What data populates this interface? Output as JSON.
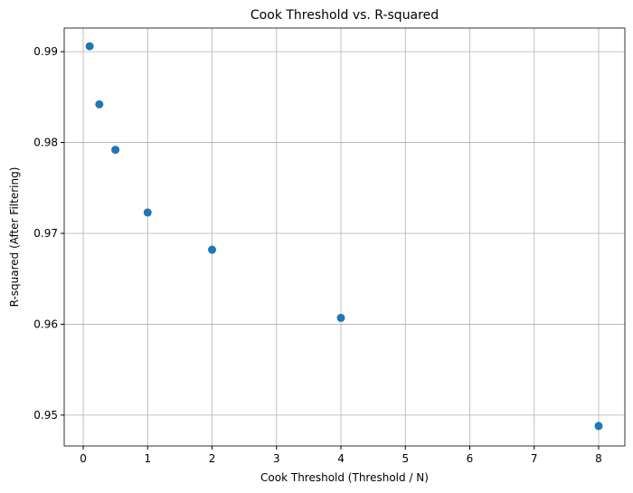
{
  "chart_data": {
    "type": "scatter",
    "title": "Cook Threshold vs. R-squared",
    "x_label": "Cook Threshold (Threshold / N)",
    "y_label": "R-squared (After Filtering)",
    "x": [
      0.1,
      0.25,
      0.5,
      1,
      2,
      4,
      8
    ],
    "values": [
      0.9906,
      0.9842,
      0.9792,
      0.9723,
      0.9682,
      0.9607,
      0.9488
    ],
    "color": "#1f77b4",
    "xlim": [
      -0.295,
      8.407
    ],
    "xticks": [
      0,
      1,
      2,
      3,
      4,
      5,
      6,
      7,
      8
    ],
    "ylim": [
      0.9466,
      0.9926
    ],
    "yticks": [
      0.95,
      0.96,
      0.97,
      0.98,
      0.99
    ],
    "grid": true
  }
}
